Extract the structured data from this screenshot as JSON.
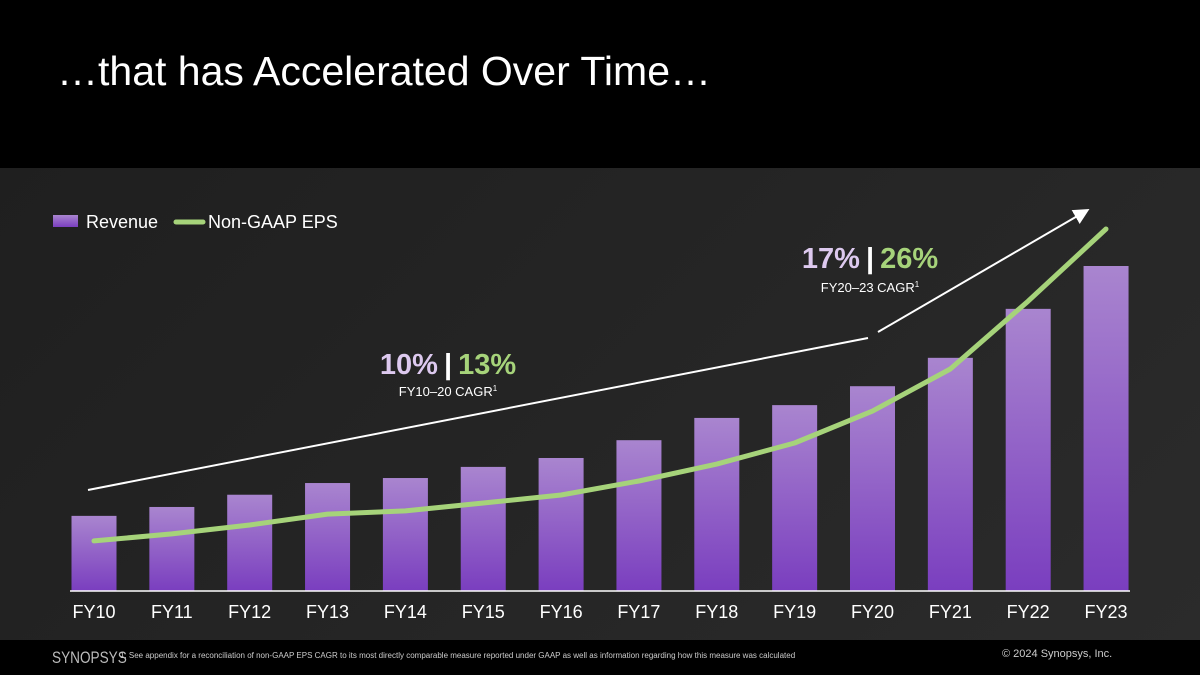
{
  "title": "…that has Accelerated Over Time…",
  "chart_data": {
    "type": "bar+line",
    "categories": [
      "FY10",
      "FY11",
      "FY12",
      "FY13",
      "FY14",
      "FY15",
      "FY16",
      "FY17",
      "FY18",
      "FY19",
      "FY20",
      "FY21",
      "FY22",
      "FY23"
    ],
    "series": [
      {
        "name": "Revenue",
        "type": "bar",
        "unit": "approx. $B (no axis shown)",
        "values": [
          1.35,
          1.51,
          1.73,
          1.94,
          2.03,
          2.23,
          2.39,
          2.71,
          3.11,
          3.34,
          3.68,
          4.19,
          5.07,
          5.84
        ],
        "color": "#9a66cc"
      },
      {
        "name": "Non-GAAP EPS",
        "type": "line",
        "unit": "approx. $ (no axis shown)",
        "values": [
          1.57,
          1.79,
          2.07,
          2.41,
          2.51,
          2.76,
          3.01,
          3.45,
          3.98,
          4.64,
          5.64,
          6.96,
          9.09,
          11.35
        ],
        "color": "#a6d37a"
      }
    ],
    "legend": {
      "position": "top-left",
      "items": [
        "Revenue",
        "Non-GAAP EPS"
      ]
    },
    "annotations": [
      {
        "rev": "10%",
        "sep": "|",
        "eps": "13%",
        "label": "FY10–20 CAGR",
        "sup": "1"
      },
      {
        "rev": "17%",
        "sep": "|",
        "eps": "26%",
        "label": "FY20–23 CAGR",
        "sup": "1"
      }
    ],
    "grid": false
  },
  "footer": {
    "logo": "SYNOPSYS",
    "footnote": "1.     See appendix for a reconciliation of non-GAAP EPS CAGR to its most directly comparable measure reported under GAAP as well as information regarding how this measure was calculated",
    "copyright": "© 2024 Synopsys, Inc."
  },
  "colors": {
    "purple_text": "#ddc9ef",
    "green": "#a6d37a"
  }
}
